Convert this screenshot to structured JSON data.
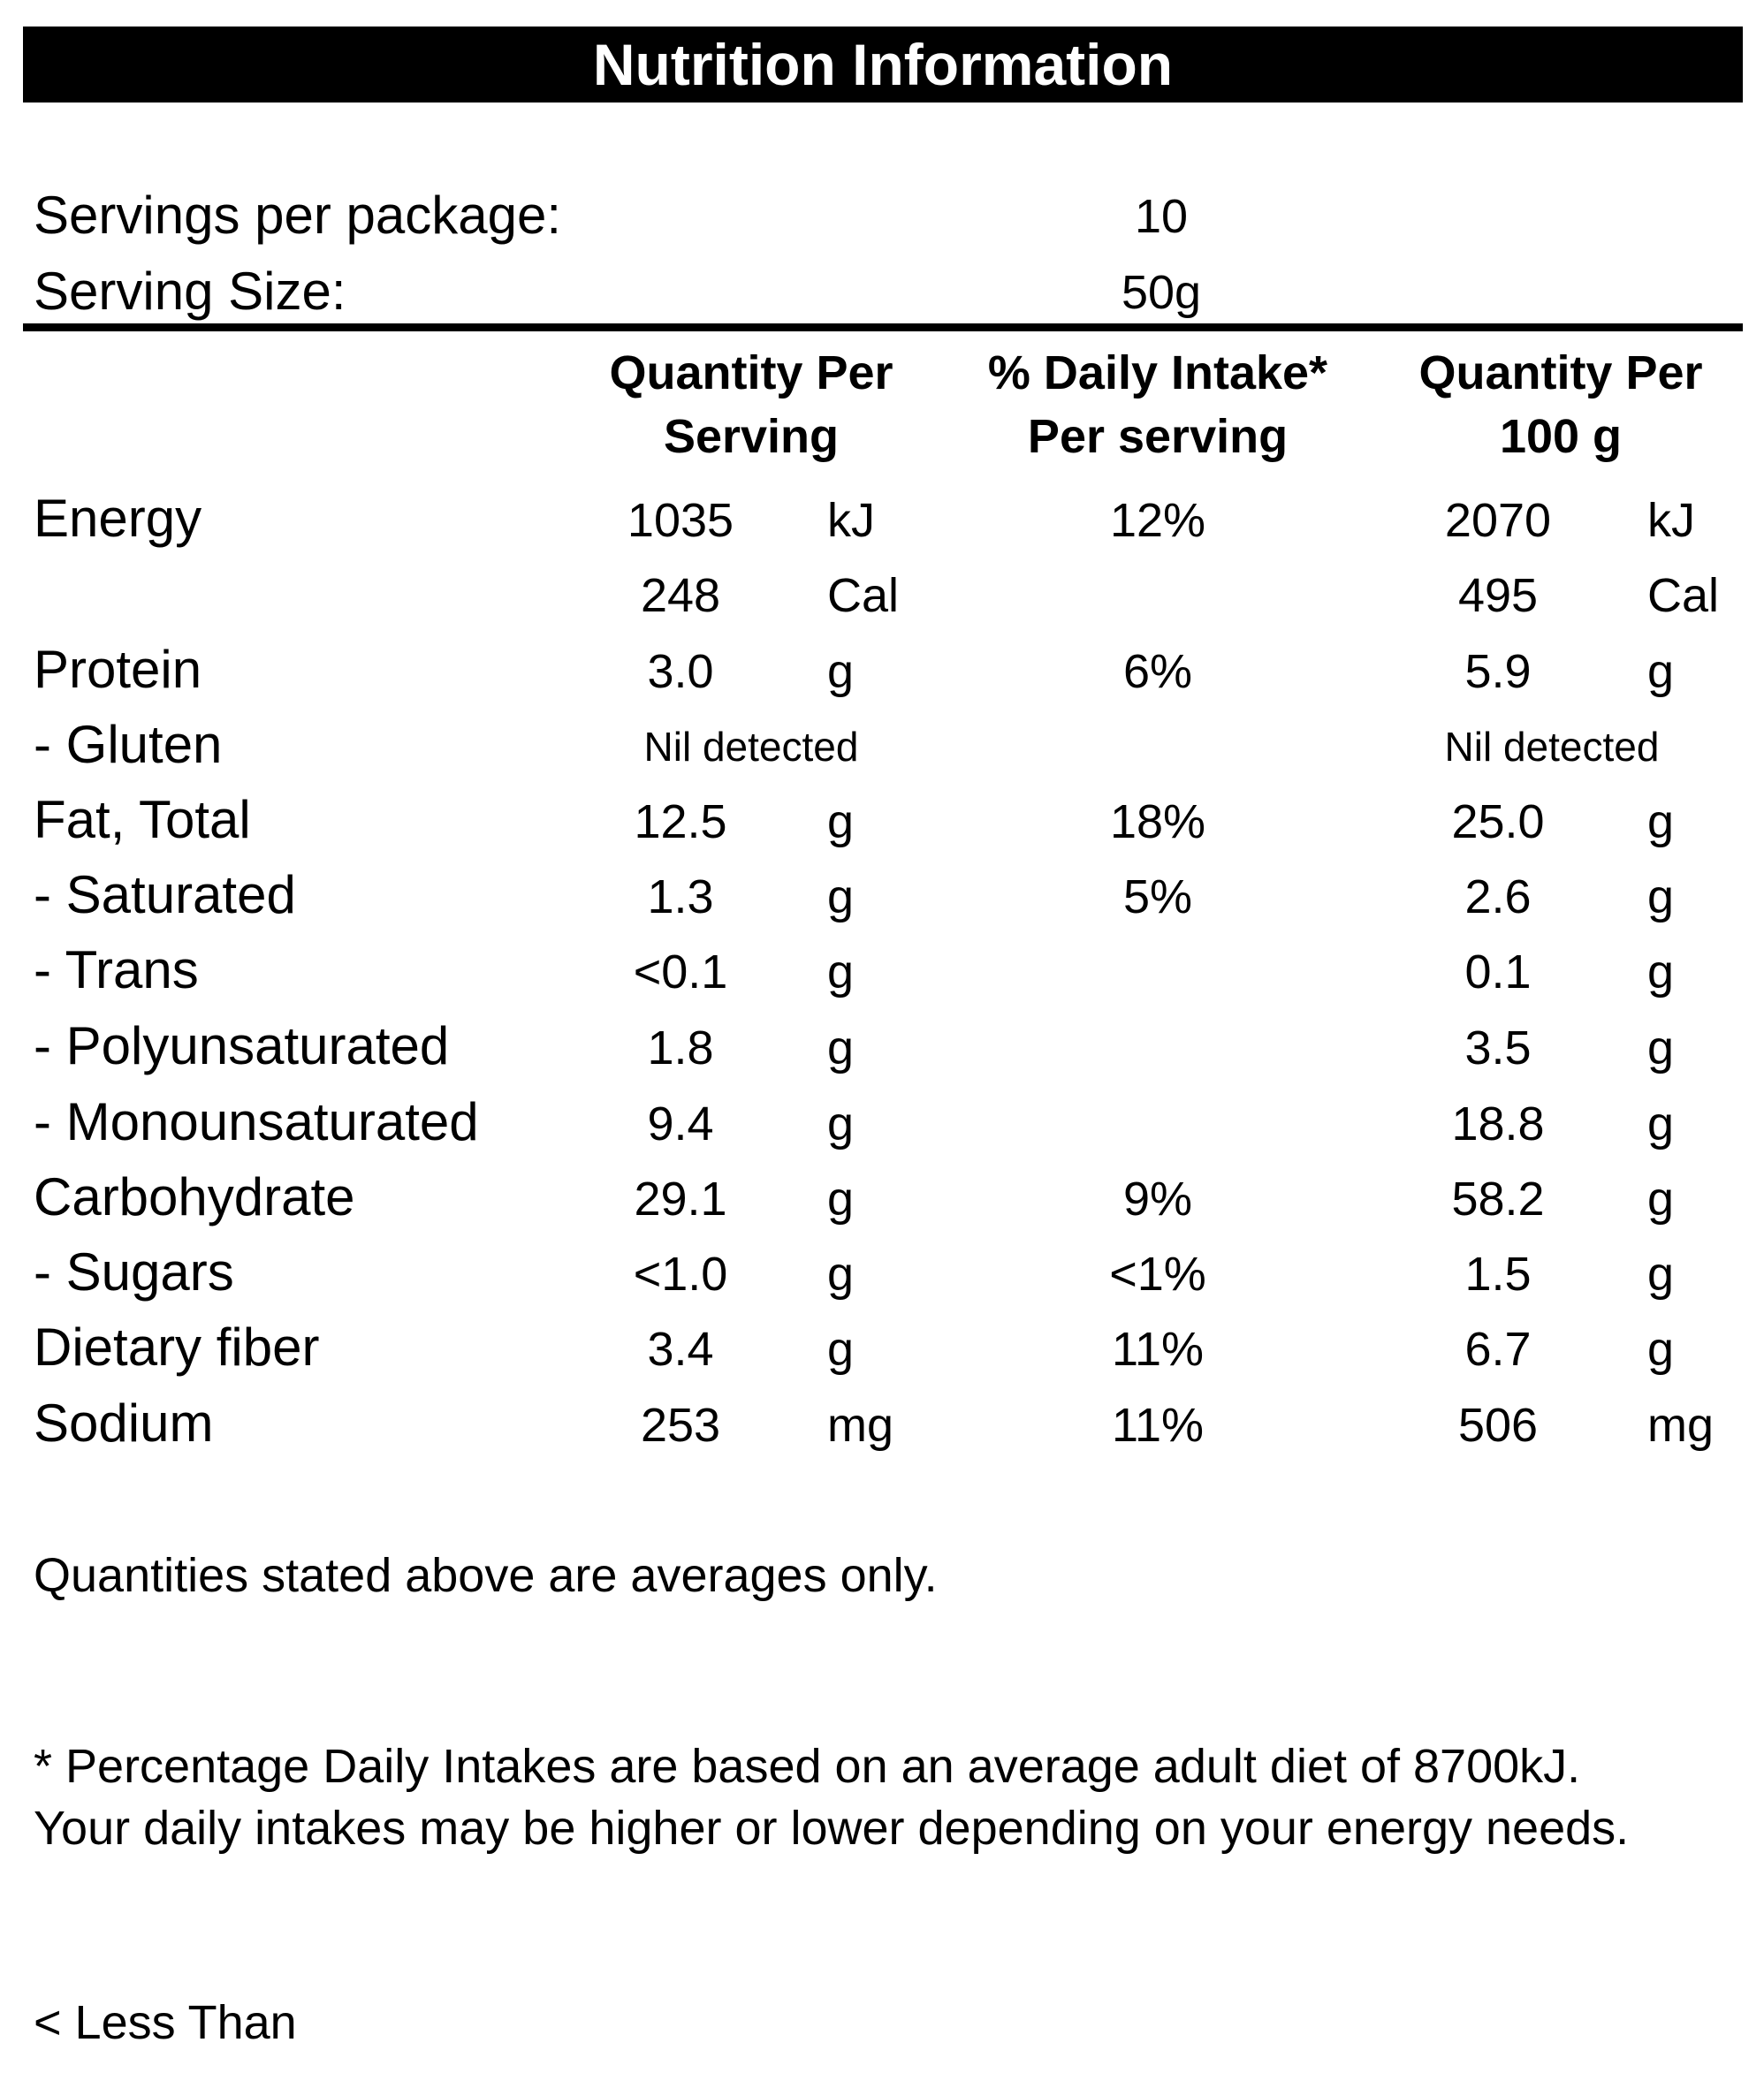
{
  "title": "Nutrition Information",
  "servings": {
    "per_package_label": "Servings per package:",
    "per_package_value": "10",
    "size_label": "Serving Size:",
    "size_value": "50g"
  },
  "headers": {
    "per_serving_line1": "Quantity Per",
    "per_serving_line2": "Serving",
    "daily_intake_line1": "% Daily Intake*",
    "daily_intake_line2": "Per serving",
    "per_100g_line1": "Quantity Per",
    "per_100g_line2": "100 g"
  },
  "rows": [
    {
      "label": "Energy",
      "serving": "1035",
      "serving_unit": "kJ",
      "pct": "12%",
      "per100": "2070",
      "per100_unit": "kJ"
    },
    {
      "label": "",
      "serving": "248",
      "serving_unit": "Cal",
      "pct": "",
      "per100": "495",
      "per100_unit": "Cal"
    },
    {
      "label": "Protein",
      "serving": "3.0",
      "serving_unit": "g",
      "pct": "6%",
      "per100": "5.9",
      "per100_unit": "g"
    },
    {
      "label": "- Gluten",
      "serving_nil": "Nil detected",
      "per100_nil": "Nil detected"
    },
    {
      "label": "Fat, Total",
      "serving": "12.5",
      "serving_unit": "g",
      "pct": "18%",
      "per100": "25.0",
      "per100_unit": "g"
    },
    {
      "label": "- Saturated",
      "serving": "1.3",
      "serving_unit": "g",
      "pct": "5%",
      "per100": "2.6",
      "per100_unit": "g"
    },
    {
      "label": "- Trans",
      "serving": "<0.1",
      "serving_unit": "g",
      "pct": "",
      "per100": "0.1",
      "per100_unit": "g"
    },
    {
      "label": "- Polyunsaturated",
      "serving": "1.8",
      "serving_unit": "g",
      "pct": "",
      "per100": "3.5",
      "per100_unit": "g"
    },
    {
      "label": "- Monounsaturated",
      "serving": "9.4",
      "serving_unit": "g",
      "pct": "",
      "per100": "18.8",
      "per100_unit": "g"
    },
    {
      "label": "Carbohydrate",
      "serving": "29.1",
      "serving_unit": "g",
      "pct": "9%",
      "per100": "58.2",
      "per100_unit": "g"
    },
    {
      "label": "- Sugars",
      "serving": "<1.0",
      "serving_unit": "g",
      "pct": "<1%",
      "per100": "1.5",
      "per100_unit": "g"
    },
    {
      "label": "Dietary fiber",
      "serving": "3.4",
      "serving_unit": "g",
      "pct": "11%",
      "per100": "6.7",
      "per100_unit": "g"
    },
    {
      "label": "Sodium",
      "serving": "253",
      "serving_unit": "mg",
      "pct": "11%",
      "per100": "506",
      "per100_unit": "mg"
    }
  ],
  "notes": {
    "averages": "Quantities stated above are averages only.",
    "footnote_line1": "* Percentage Daily Intakes are based on an average adult diet of 8700kJ.",
    "footnote_line2": "Your daily intakes may be higher or lower depending on your energy needs.",
    "legend": "< Less Than"
  }
}
